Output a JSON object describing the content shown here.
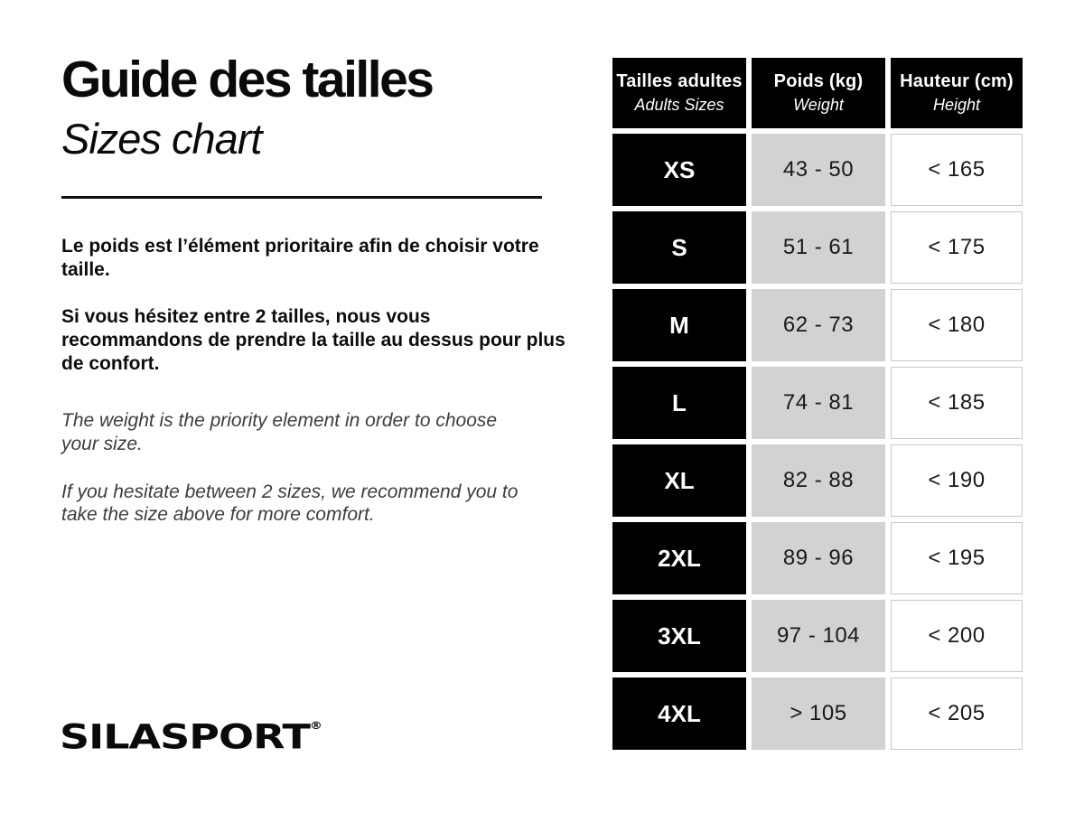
{
  "header": {
    "title_fr": "Guide des tailles",
    "title_en": "Sizes chart"
  },
  "intro": {
    "fr": [
      "Le poids est l’élément prioritaire afin de choisir votre taille.",
      "Si vous hésitez entre 2 tailles, nous vous recommandons de prendre la taille au dessus pour plus de confort."
    ],
    "en": [
      "The weight is the priority element in order to choose your size.",
      "If you hesitate between 2 sizes, we recommend you to take the size above for more comfort."
    ]
  },
  "logo": {
    "text": "SILASPORT",
    "reg": "®"
  },
  "table": {
    "columns": [
      {
        "fr": "Tailles adultes",
        "en": "Adults Sizes"
      },
      {
        "fr": "Poids (kg)",
        "en": "Weight"
      },
      {
        "fr": "Hauteur (cm)",
        "en": "Height"
      }
    ],
    "rows": [
      {
        "size": "XS",
        "weight": "43 - 50",
        "height": "< 165"
      },
      {
        "size": "S",
        "weight": "51 - 61",
        "height": "< 175"
      },
      {
        "size": "M",
        "weight": "62 - 73",
        "height": "< 180"
      },
      {
        "size": "L",
        "weight": "74 - 81",
        "height": "< 185"
      },
      {
        "size": "XL",
        "weight": "82 - 88",
        "height": "< 190"
      },
      {
        "size": "2XL",
        "weight": "89 - 96",
        "height": "< 195"
      },
      {
        "size": "3XL",
        "weight": "97 - 104",
        "height": "< 200"
      },
      {
        "size": "4XL",
        "weight": "> 105",
        "height": "< 205"
      }
    ]
  },
  "colors": {
    "black": "#000000",
    "cell_gray": "#d2d2d2",
    "border_gray": "#c9c9c9",
    "text_dark": "#1a1a1a"
  }
}
